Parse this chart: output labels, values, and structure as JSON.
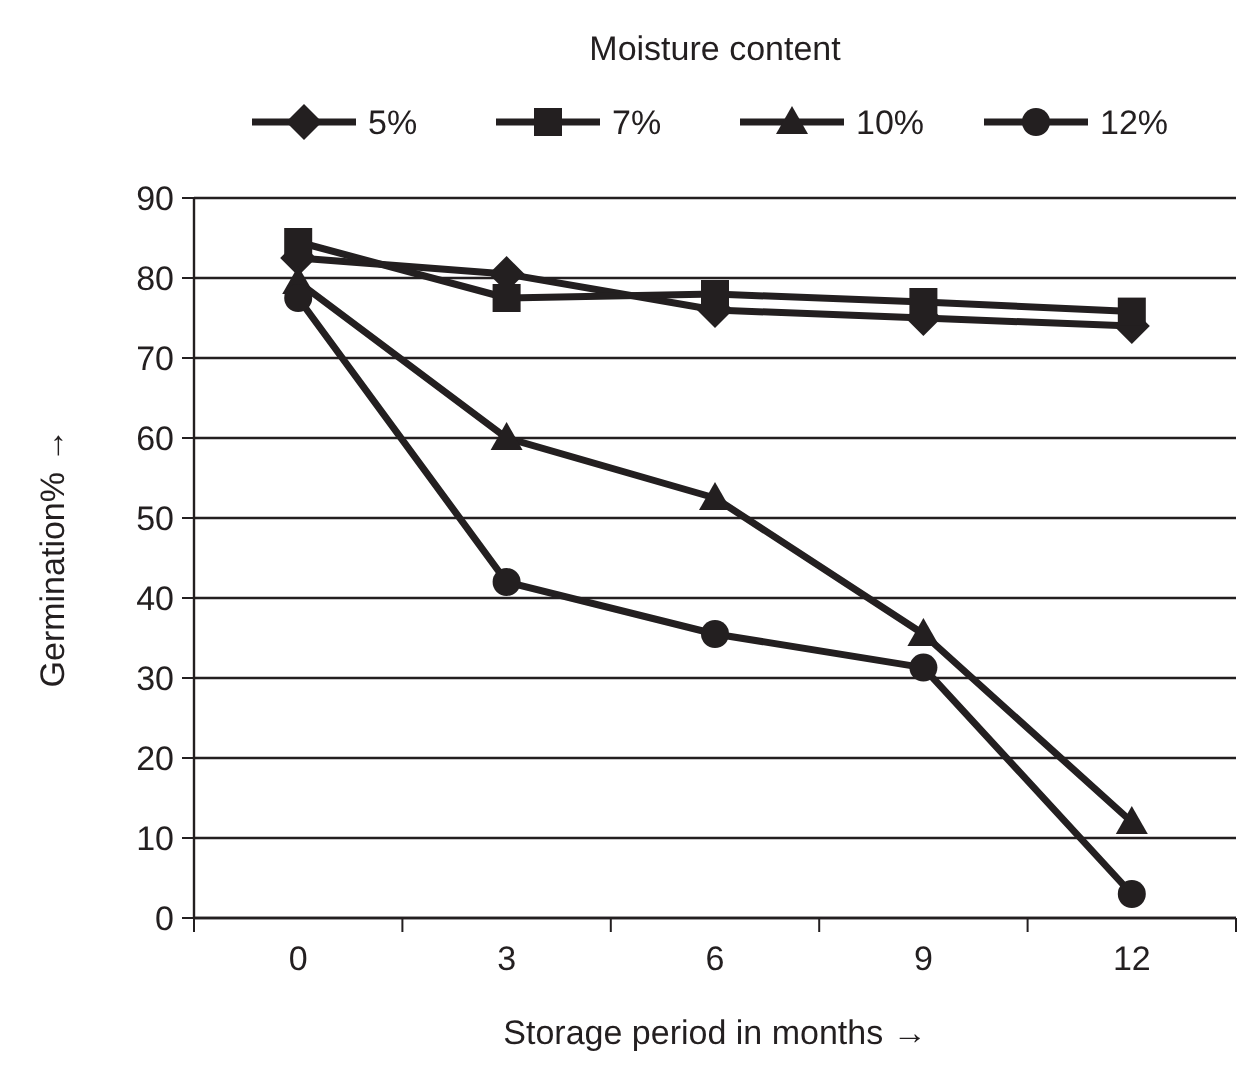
{
  "chart_data": {
    "type": "line",
    "legend_title": "Moisture content",
    "xlabel": "Storage period in months →",
    "ylabel": "Germination% →",
    "categories": [
      "0",
      "3",
      "6",
      "9",
      "12"
    ],
    "ylim": [
      0,
      90
    ],
    "yticks": [
      0,
      10,
      20,
      30,
      40,
      50,
      60,
      70,
      80,
      90
    ],
    "grid": "y",
    "legend": "top",
    "line_style": "solid",
    "series": [
      {
        "name": "5%",
        "color": "#231f20",
        "marker": "diamond",
        "values": [
          82.5,
          80.5,
          76,
          75,
          74
        ]
      },
      {
        "name": "7%",
        "color": "#231f20",
        "marker": "square",
        "values": [
          84.5,
          77.5,
          78,
          77,
          75.8
        ]
      },
      {
        "name": "10%",
        "color": "#231f20",
        "marker": "triangle",
        "values": [
          79.5,
          60,
          52.5,
          35.5,
          12
        ]
      },
      {
        "name": "12%",
        "color": "#231f20",
        "marker": "circle",
        "values": [
          77.5,
          42,
          35.5,
          31.3,
          3
        ]
      }
    ]
  }
}
